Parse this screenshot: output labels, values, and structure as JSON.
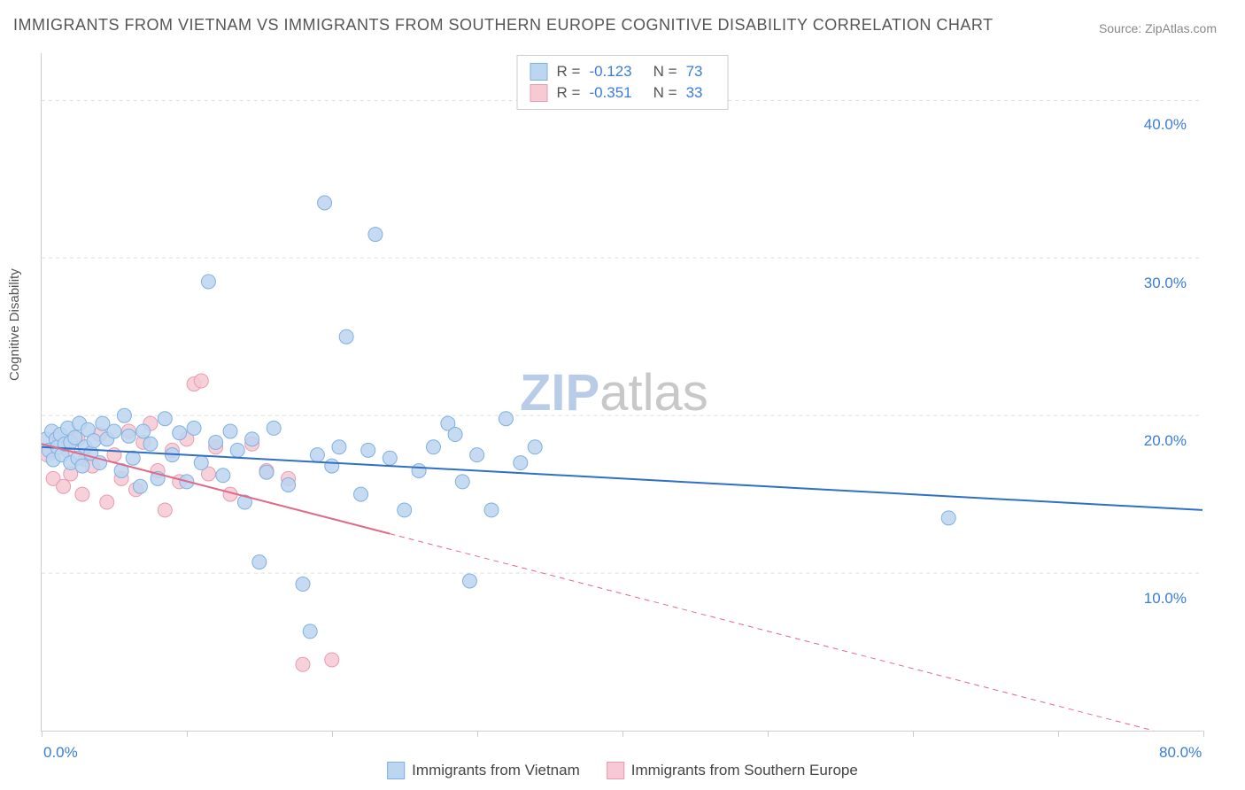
{
  "title": "IMMIGRANTS FROM VIETNAM VS IMMIGRANTS FROM SOUTHERN EUROPE COGNITIVE DISABILITY CORRELATION CHART",
  "source_label": "Source: ZipAtlas.com",
  "y_axis_title": "Cognitive Disability",
  "watermark": {
    "zip": "ZIP",
    "atlas": "atlas",
    "color_zip": "#b8cce8",
    "color_atlas": "#c8c8c8",
    "fontsize": 58
  },
  "chart": {
    "xlim": [
      0,
      80
    ],
    "ylim": [
      0,
      43
    ],
    "x_ticks": [
      0,
      10,
      20,
      30,
      40,
      50,
      60,
      70,
      80
    ],
    "x_tick_labels": {
      "0": "0.0%",
      "80": "80.0%"
    },
    "x_tick_label_color": "#3a7cd6",
    "y_gridlines": [
      10,
      20,
      30,
      40
    ],
    "y_tick_labels": {
      "10": "10.0%",
      "20": "20.0%",
      "30": "30.0%",
      "40": "40.0%"
    },
    "y_tick_label_color": "#3a7cd6",
    "grid_color": "#dddddd",
    "tick_fontsize": 17
  },
  "series": {
    "a": {
      "label": "Immigrants from Vietnam",
      "marker_fill": "#bcd5f0",
      "marker_stroke": "#7fb0e0",
      "marker_radius": 8,
      "marker_opacity": 0.85,
      "line_color": "#2f6fc7",
      "line_width": 2,
      "legend_fill": "#bcd5f0",
      "legend_border": "#7fb0e0",
      "R": "-0.123",
      "N": "73",
      "trend": {
        "x1": 0,
        "y1": 18.0,
        "x2_solid": 80,
        "y2_solid": 14.0,
        "x2_dash": 80,
        "y2_dash": 14.0
      },
      "points": [
        [
          0.3,
          18.5
        ],
        [
          0.5,
          17.8
        ],
        [
          0.7,
          19.0
        ],
        [
          0.8,
          17.2
        ],
        [
          1.0,
          18.5
        ],
        [
          1.1,
          18.0
        ],
        [
          1.3,
          18.8
        ],
        [
          1.4,
          17.5
        ],
        [
          1.6,
          18.2
        ],
        [
          1.8,
          19.2
        ],
        [
          2.0,
          17.0
        ],
        [
          2.0,
          18.3
        ],
        [
          2.3,
          18.6
        ],
        [
          2.5,
          17.3
        ],
        [
          2.6,
          19.5
        ],
        [
          2.8,
          16.8
        ],
        [
          3.0,
          18.0
        ],
        [
          3.2,
          19.1
        ],
        [
          3.4,
          17.6
        ],
        [
          3.6,
          18.4
        ],
        [
          4.0,
          17.0
        ],
        [
          4.5,
          18.5
        ],
        [
          5.0,
          19.0
        ],
        [
          5.5,
          16.5
        ],
        [
          6.0,
          18.7
        ],
        [
          6.3,
          17.3
        ],
        [
          6.8,
          15.5
        ],
        [
          7.0,
          19.0
        ],
        [
          7.5,
          18.2
        ],
        [
          8.0,
          16.0
        ],
        [
          8.5,
          19.8
        ],
        [
          9.0,
          17.5
        ],
        [
          9.5,
          18.9
        ],
        [
          10.0,
          15.8
        ],
        [
          10.5,
          19.2
        ],
        [
          11.0,
          17.0
        ],
        [
          11.5,
          28.5
        ],
        [
          12.0,
          18.3
        ],
        [
          12.5,
          16.2
        ],
        [
          13.0,
          19.0
        ],
        [
          13.5,
          17.8
        ],
        [
          14.0,
          14.5
        ],
        [
          14.5,
          18.5
        ],
        [
          15.0,
          10.7
        ],
        [
          15.5,
          16.4
        ],
        [
          16.0,
          19.2
        ],
        [
          17.0,
          15.6
        ],
        [
          18.0,
          9.3
        ],
        [
          18.5,
          6.3
        ],
        [
          19.0,
          17.5
        ],
        [
          19.5,
          33.5
        ],
        [
          20.0,
          16.8
        ],
        [
          20.5,
          18.0
        ],
        [
          21.0,
          25.0
        ],
        [
          22.0,
          15.0
        ],
        [
          22.5,
          17.8
        ],
        [
          23.0,
          31.5
        ],
        [
          24.0,
          17.3
        ],
        [
          25.0,
          14.0
        ],
        [
          26.0,
          16.5
        ],
        [
          27.0,
          18.0
        ],
        [
          28.0,
          19.5
        ],
        [
          28.5,
          18.8
        ],
        [
          29.0,
          15.8
        ],
        [
          29.5,
          9.5
        ],
        [
          30.0,
          17.5
        ],
        [
          31.0,
          14.0
        ],
        [
          32.0,
          19.8
        ],
        [
          33.0,
          17.0
        ],
        [
          34.0,
          18.0
        ],
        [
          62.5,
          13.5
        ],
        [
          5.7,
          20.0
        ],
        [
          4.2,
          19.5
        ]
      ]
    },
    "b": {
      "label": "Immigrants from Southern Europe",
      "marker_fill": "#f6c9d4",
      "marker_stroke": "#e89bb0",
      "marker_radius": 8,
      "marker_opacity": 0.85,
      "line_color": "#e06a8a",
      "line_width": 2,
      "legend_fill": "#f6c9d4",
      "legend_border": "#e89bb0",
      "R": "-0.351",
      "N": "33",
      "trend": {
        "x1": 0,
        "y1": 18.2,
        "x2_solid": 24,
        "y2_solid": 12.5,
        "x2_dash": 80,
        "y2_dash": -0.8
      },
      "points": [
        [
          0.4,
          17.5
        ],
        [
          0.8,
          16.0
        ],
        [
          1.2,
          18.2
        ],
        [
          1.5,
          15.5
        ],
        [
          1.8,
          17.8
        ],
        [
          2.0,
          16.3
        ],
        [
          2.5,
          18.5
        ],
        [
          2.8,
          15.0
        ],
        [
          3.0,
          17.2
        ],
        [
          3.5,
          16.8
        ],
        [
          4.0,
          18.8
        ],
        [
          4.5,
          14.5
        ],
        [
          5.0,
          17.5
        ],
        [
          5.5,
          16.0
        ],
        [
          6.0,
          19.0
        ],
        [
          6.5,
          15.3
        ],
        [
          7.0,
          18.3
        ],
        [
          7.5,
          19.5
        ],
        [
          8.0,
          16.5
        ],
        [
          8.5,
          14.0
        ],
        [
          9.0,
          17.8
        ],
        [
          9.5,
          15.8
        ],
        [
          10.0,
          18.5
        ],
        [
          10.5,
          22.0
        ],
        [
          11.0,
          22.2
        ],
        [
          11.5,
          16.3
        ],
        [
          12.0,
          18.0
        ],
        [
          13.0,
          15.0
        ],
        [
          14.5,
          18.2
        ],
        [
          15.5,
          16.5
        ],
        [
          17.0,
          16.0
        ],
        [
          18.0,
          4.2
        ],
        [
          20.0,
          4.5
        ]
      ]
    }
  },
  "legend_top": {
    "r_label": "R =",
    "n_label": "N ="
  }
}
